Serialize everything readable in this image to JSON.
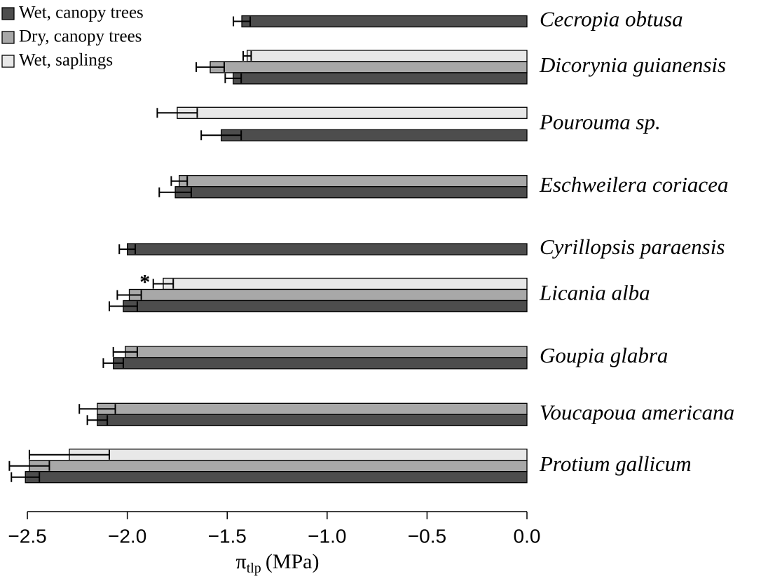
{
  "chart_data": {
    "type": "hbar",
    "categories": [
      "Cecropia obtusa",
      "Dicorynia guianensis",
      "Pourouma sp.",
      "Eschweilera coriacea",
      "Cyrillopsis paraensis",
      "Licania alba",
      "Goupia glabra",
      "Voucapoua americana",
      "Protium gallicum"
    ],
    "series": [
      {
        "name": "Wet, saplings",
        "color": "#e8e8e8",
        "values": [
          null,
          -1.4,
          -1.75,
          null,
          null,
          -1.82,
          null,
          null,
          -2.29
        ],
        "errors": [
          null,
          0.02,
          0.1,
          null,
          null,
          0.05,
          null,
          null,
          0.2
        ]
      },
      {
        "name": "Dry, canopy trees",
        "color": "#a8a8a8",
        "values": [
          null,
          -1.585,
          null,
          -1.74,
          null,
          -1.99,
          -2.01,
          -2.15,
          -2.49
        ],
        "errors": [
          null,
          0.07,
          null,
          0.04,
          null,
          0.06,
          0.06,
          0.09,
          0.1
        ]
      },
      {
        "name": "Wet, canopy trees",
        "color": "#4d4d4d",
        "values": [
          -1.427,
          -1.47,
          -1.53,
          -1.76,
          -2.0,
          -2.02,
          -2.07,
          -2.15,
          -2.51
        ],
        "errors": [
          0.042,
          0.04,
          0.1,
          0.08,
          0.04,
          0.07,
          0.05,
          0.05,
          0.07
        ]
      }
    ],
    "legend_order": [
      2,
      1,
      0
    ],
    "annotations": [
      {
        "text": "*",
        "category": 5,
        "series": 0
      }
    ],
    "xlim": [
      -2.637,
      0
    ],
    "xticks": [
      {
        "value": -2.5,
        "label": "−2.5"
      },
      {
        "value": -2.0,
        "label": "−2.0"
      },
      {
        "value": -1.5,
        "label": "−1.5"
      },
      {
        "value": -1.0,
        "label": "−1.0"
      },
      {
        "value": -0.5,
        "label": "−0.5"
      },
      {
        "value": 0,
        "label": "0.0"
      }
    ],
    "x_label": {
      "symbol": "π",
      "sub": "tlp",
      "unit": "(MPa)"
    }
  }
}
